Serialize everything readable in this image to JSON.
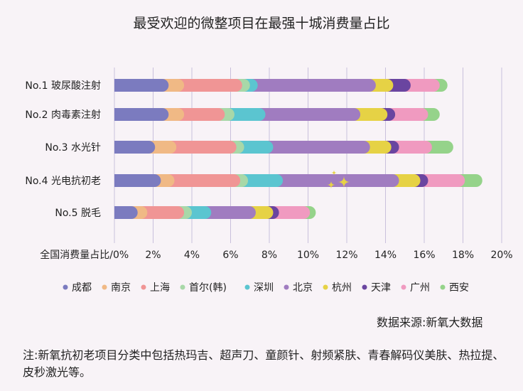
{
  "chart_data": {
    "type": "bar",
    "orientation": "horizontal",
    "stacked": true,
    "title": "最受欢迎的微整项目在最强十城消费量占比",
    "xlabel": "全国消费量占比/",
    "xlim": [
      0,
      20
    ],
    "xticks": [
      "0%",
      "2%",
      "4%",
      "6%",
      "8%",
      "10%",
      "12%",
      "14%",
      "16%",
      "18%",
      "20%"
    ],
    "grid": true,
    "legend_position": "bottom",
    "categories": [
      "No.1 玻尿酸注射",
      "No.2 肉毒素注射",
      "No.3 水光针",
      "No.4 光电抗初老",
      "No.5 脱毛"
    ],
    "series": [
      {
        "name": "成都",
        "color": "#7b7bbf",
        "values": [
          2.8,
          2.8,
          2.1,
          2.4,
          1.2
        ]
      },
      {
        "name": "南京",
        "color": "#f0b985",
        "values": [
          0.8,
          0.8,
          1.1,
          0.7,
          0.5
        ]
      },
      {
        "name": "上海",
        "color": "#f09595",
        "values": [
          3.0,
          2.1,
          3.1,
          3.4,
          1.9
        ]
      },
      {
        "name": "首尔(韩)",
        "color": "#a8d8a8",
        "values": [
          0.4,
          0.5,
          0.4,
          0.4,
          0.4
        ]
      },
      {
        "name": "深圳",
        "color": "#5bc5d0",
        "values": [
          0.4,
          1.6,
          1.5,
          1.8,
          1.0
        ]
      },
      {
        "name": "北京",
        "color": "#a07cc0",
        "values": [
          6.1,
          4.9,
          5.0,
          6.0,
          2.3
        ]
      },
      {
        "name": "杭州",
        "color": "#e6d245",
        "values": [
          0.9,
          1.4,
          1.1,
          1.1,
          0.9
        ]
      },
      {
        "name": "天津",
        "color": "#6a45a0",
        "values": [
          0.9,
          0.4,
          0.4,
          0.4,
          0.3
        ]
      },
      {
        "name": "广州",
        "color": "#f09ac0",
        "values": [
          1.5,
          1.7,
          1.7,
          1.9,
          1.6
        ]
      },
      {
        "name": "西安",
        "color": "#95d38a",
        "values": [
          0.4,
          0.6,
          1.1,
          0.9,
          0.3
        ]
      }
    ]
  },
  "source": "数据来源:新氧大数据",
  "note": "注:新氧抗初老项目分类中包括热玛吉、超声刀、童颜针、射频紧肤、青春解码仪美肤、热拉提、皮秒激光等。",
  "colors": {
    "background": "#f8f3f7",
    "grid": "#c9c0dc"
  }
}
